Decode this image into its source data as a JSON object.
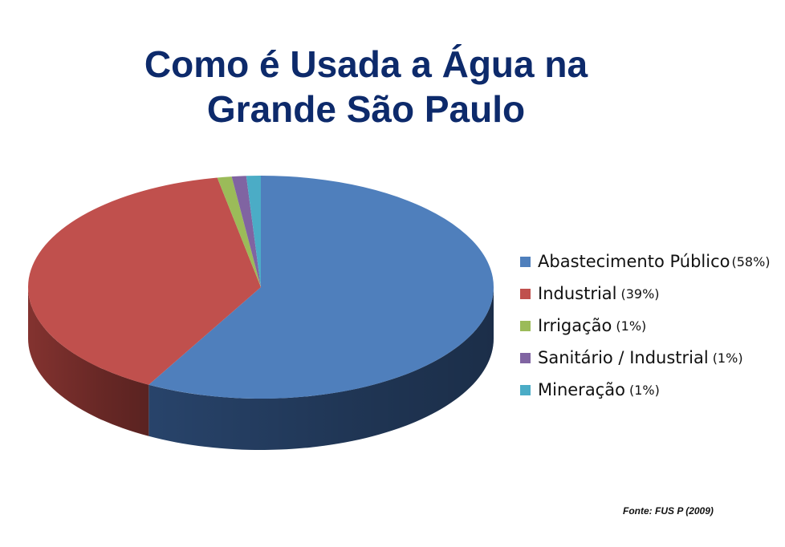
{
  "title_line1": "Como é Usada a Água na",
  "title_line2": "Grande São Paulo",
  "source": "Fonte: FUS P (2009)",
  "chart_data": {
    "type": "pie",
    "title": "Como é Usada a Água na Grande São Paulo",
    "legend_position": "right",
    "categories": [
      "Abastecimento Público",
      "Industrial",
      "Irrigação",
      "Sanitário / Industrial",
      "Mineração"
    ],
    "values": [
      58,
      39,
      1,
      1,
      1
    ],
    "value_labels": [
      "(58%)",
      "(39%)",
      "(1%)",
      "(1%)",
      "(1%)"
    ],
    "colors": [
      "#4f7fbc",
      "#c0504d",
      "#9bbb59",
      "#8064a2",
      "#4bacc6"
    ],
    "side_colors": [
      "#2a4770",
      "#8a3532",
      "#6d853d",
      "#5a4673",
      "#357a8d"
    ]
  }
}
